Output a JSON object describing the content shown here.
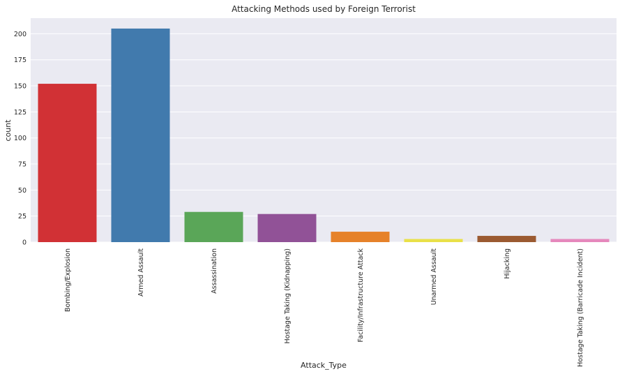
{
  "chart_data": {
    "type": "bar",
    "title": "Attacking Methods used by Foreign Terrorist",
    "xlabel": "Attack_Type",
    "ylabel": "count",
    "categories": [
      "Bombing/Explosion",
      "Armed Assault",
      "Assassination",
      "Hostage Taking (Kidnapping)",
      "Facility/Infrastructure Attack",
      "Unarmed Assault",
      "Hijacking",
      "Hostage Taking (Barricade Incident)"
    ],
    "values": [
      152,
      205,
      29,
      27,
      10,
      3,
      6,
      3
    ],
    "colors": [
      "#d13135",
      "#417aad",
      "#5aa658",
      "#915297",
      "#e6822a",
      "#e9e049",
      "#9b5a31",
      "#e588bc"
    ],
    "ylim": [
      0,
      215
    ],
    "yticks": [
      0,
      25,
      50,
      75,
      100,
      125,
      150,
      175,
      200
    ],
    "grid": true,
    "background": "#eaeaf2"
  }
}
